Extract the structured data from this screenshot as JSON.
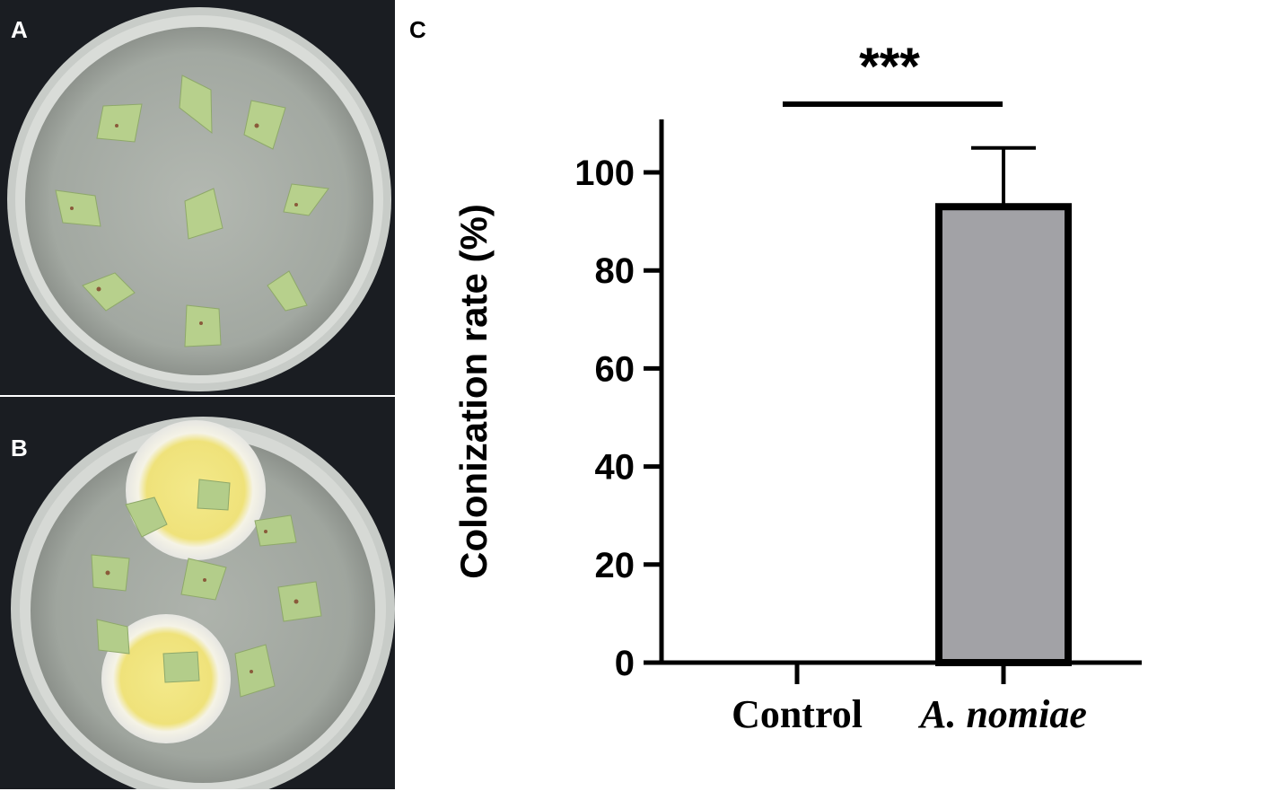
{
  "panels": {
    "a_label": "A",
    "b_label": "B",
    "c_label": "C"
  },
  "colors": {
    "photo_background": "#1a1d22",
    "agar": "#a7aca6",
    "leaf": "#b7d08c",
    "colony_center": "#efe48a",
    "colony_rim": "#f2f2ee",
    "bar_fill": "#a2a2a6",
    "bar_stroke": "#000000"
  },
  "chart_data": {
    "type": "bar",
    "categories": [
      "Control",
      "A. nomiae"
    ],
    "values": [
      0,
      93
    ],
    "error_bars": [
      0,
      12
    ],
    "ylabel": "Colonization rate (%)",
    "xlabel": "",
    "ylim": [
      0,
      110
    ],
    "yticks": [
      "0",
      "20",
      "40",
      "60",
      "80",
      "100"
    ],
    "significance": "***",
    "grid": false,
    "legend": "none"
  }
}
